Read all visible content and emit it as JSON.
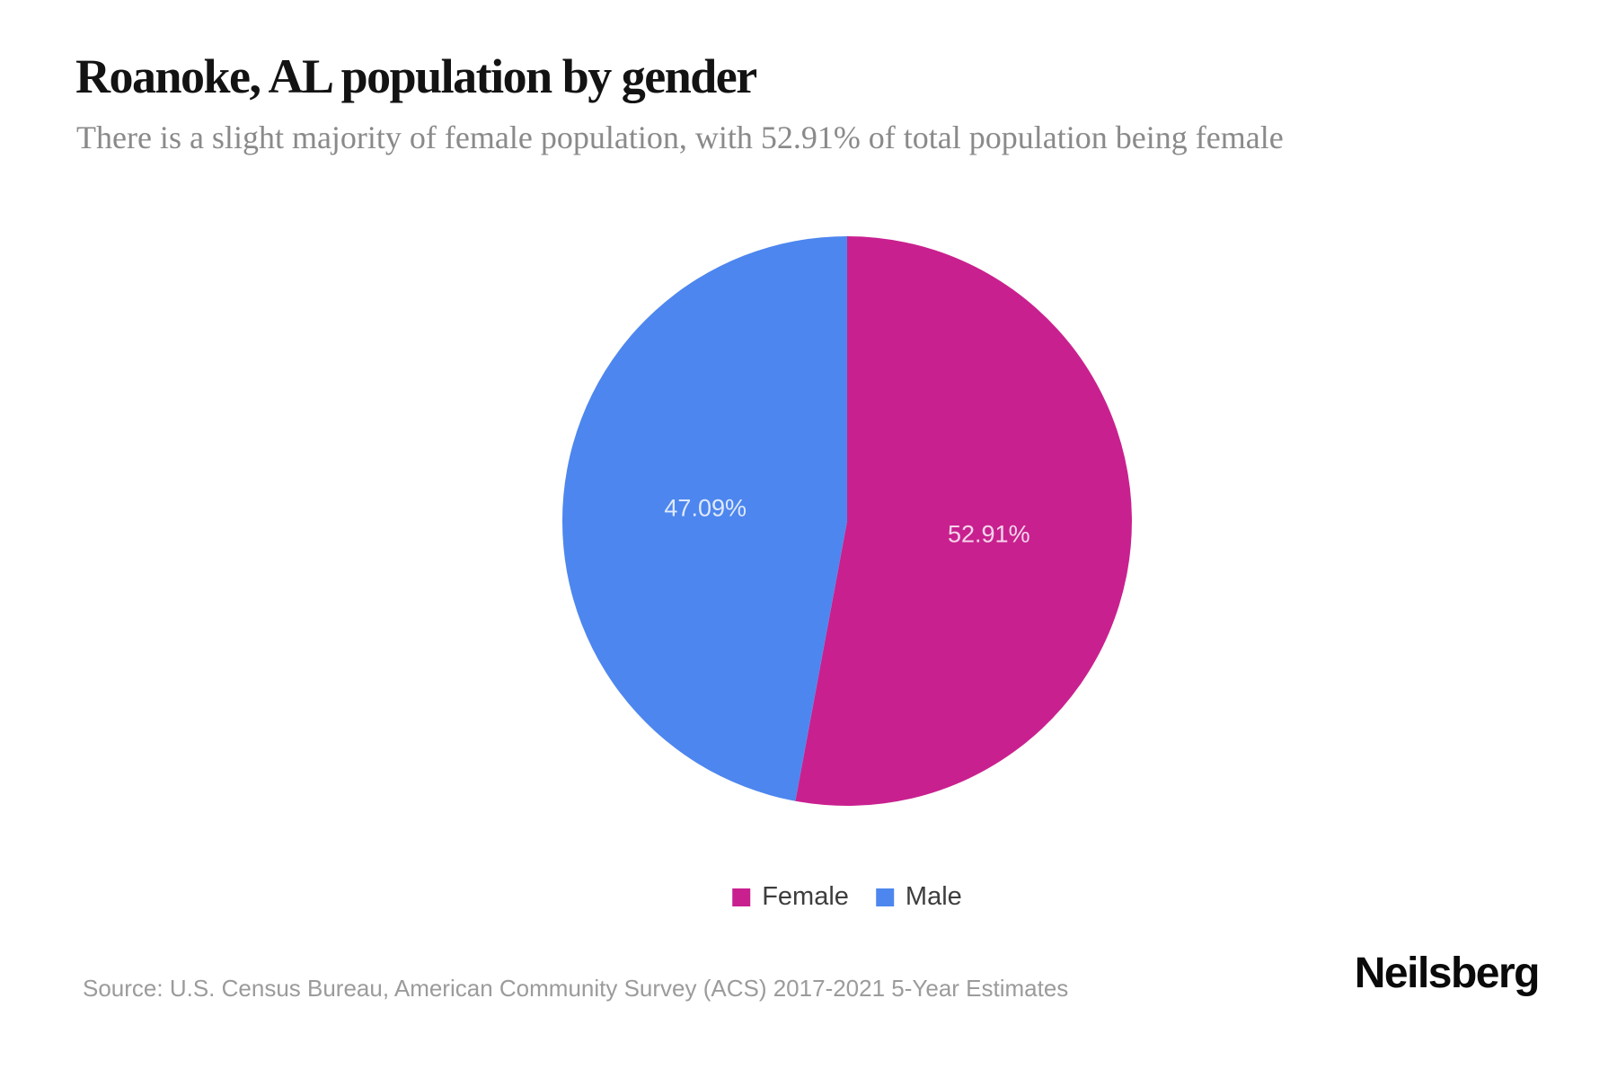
{
  "header": {
    "title": "Roanoke, AL population by gender",
    "subtitle": "There is a slight majority of female population, with 52.91% of total population being female"
  },
  "chart_data": {
    "type": "pie",
    "title": "Roanoke, AL population by gender",
    "start_angle_deg": 0,
    "direction": "clockwise",
    "legend_position": "bottom",
    "label_color": "rgba(255,255,255,0.82)",
    "slices": [
      {
        "label": "Female",
        "value": 52.91,
        "display": "52.91%",
        "color": "#C9208F"
      },
      {
        "label": "Male",
        "value": 47.09,
        "display": "47.09%",
        "color": "#4D86EE"
      }
    ]
  },
  "footer": {
    "source": "Source: U.S. Census Bureau, American Community Survey (ACS) 2017-2021 5-Year Estimates",
    "brand": "Neilsberg"
  }
}
